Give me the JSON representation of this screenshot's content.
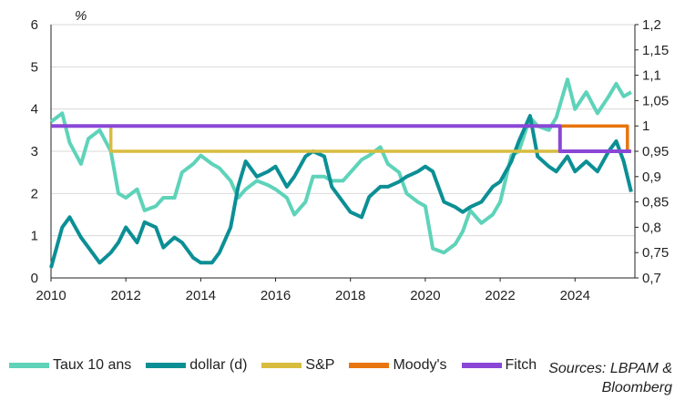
{
  "chart_data": {
    "type": "line",
    "y_unit": "%",
    "x_ticks": [
      "2010",
      "2012",
      "2014",
      "2016",
      "2018",
      "2020",
      "2022",
      "2024"
    ],
    "xlim": [
      2010,
      2025.6
    ],
    "left_axis": {
      "ylim": [
        0,
        6
      ],
      "ticks": [
        "0",
        "1",
        "2",
        "3",
        "4",
        "5",
        "6"
      ]
    },
    "right_axis": {
      "ylim": [
        0.7,
        1.2
      ],
      "ticks": [
        "0,7",
        "0,75",
        "0,8",
        "0,85",
        "0,9",
        "0,95",
        "1",
        "1,05",
        "1,1",
        "1,15",
        "1,2"
      ]
    },
    "series": [
      {
        "name": "Taux 10 ans",
        "axis": "left",
        "color": "#5ED3B9",
        "points": [
          [
            2010.0,
            3.7
          ],
          [
            2010.3,
            3.9
          ],
          [
            2010.5,
            3.2
          ],
          [
            2010.8,
            2.7
          ],
          [
            2011.0,
            3.3
          ],
          [
            2011.3,
            3.5
          ],
          [
            2011.6,
            3.0
          ],
          [
            2011.8,
            2.0
          ],
          [
            2012.0,
            1.9
          ],
          [
            2012.3,
            2.1
          ],
          [
            2012.5,
            1.6
          ],
          [
            2012.8,
            1.7
          ],
          [
            2013.0,
            1.9
          ],
          [
            2013.3,
            1.9
          ],
          [
            2013.5,
            2.5
          ],
          [
            2013.8,
            2.7
          ],
          [
            2014.0,
            2.9
          ],
          [
            2014.3,
            2.7
          ],
          [
            2014.5,
            2.6
          ],
          [
            2014.8,
            2.3
          ],
          [
            2015.0,
            1.9
          ],
          [
            2015.2,
            2.1
          ],
          [
            2015.5,
            2.3
          ],
          [
            2015.8,
            2.2
          ],
          [
            2016.0,
            2.1
          ],
          [
            2016.3,
            1.9
          ],
          [
            2016.5,
            1.5
          ],
          [
            2016.8,
            1.8
          ],
          [
            2017.0,
            2.4
          ],
          [
            2017.3,
            2.4
          ],
          [
            2017.5,
            2.3
          ],
          [
            2017.8,
            2.3
          ],
          [
            2018.0,
            2.5
          ],
          [
            2018.3,
            2.8
          ],
          [
            2018.5,
            2.9
          ],
          [
            2018.8,
            3.1
          ],
          [
            2019.0,
            2.7
          ],
          [
            2019.3,
            2.5
          ],
          [
            2019.5,
            2.0
          ],
          [
            2019.8,
            1.8
          ],
          [
            2020.0,
            1.7
          ],
          [
            2020.2,
            0.7
          ],
          [
            2020.5,
            0.6
          ],
          [
            2020.8,
            0.8
          ],
          [
            2021.0,
            1.1
          ],
          [
            2021.2,
            1.6
          ],
          [
            2021.5,
            1.3
          ],
          [
            2021.8,
            1.5
          ],
          [
            2022.0,
            1.8
          ],
          [
            2022.3,
            2.9
          ],
          [
            2022.5,
            3.0
          ],
          [
            2022.8,
            3.8
          ],
          [
            2023.0,
            3.6
          ],
          [
            2023.3,
            3.5
          ],
          [
            2023.5,
            3.8
          ],
          [
            2023.8,
            4.7
          ],
          [
            2024.0,
            4.0
          ],
          [
            2024.3,
            4.4
          ],
          [
            2024.6,
            3.9
          ],
          [
            2024.9,
            4.3
          ],
          [
            2025.1,
            4.6
          ],
          [
            2025.3,
            4.3
          ],
          [
            2025.5,
            4.4
          ]
        ]
      },
      {
        "name": "dollar (d)",
        "axis": "right",
        "color": "#0B8F95",
        "points": [
          [
            2010.0,
            0.72
          ],
          [
            2010.3,
            0.8
          ],
          [
            2010.5,
            0.82
          ],
          [
            2010.8,
            0.78
          ],
          [
            2011.0,
            0.76
          ],
          [
            2011.3,
            0.73
          ],
          [
            2011.6,
            0.75
          ],
          [
            2011.8,
            0.77
          ],
          [
            2012.0,
            0.8
          ],
          [
            2012.3,
            0.77
          ],
          [
            2012.5,
            0.81
          ],
          [
            2012.8,
            0.8
          ],
          [
            2013.0,
            0.76
          ],
          [
            2013.3,
            0.78
          ],
          [
            2013.5,
            0.77
          ],
          [
            2013.8,
            0.74
          ],
          [
            2014.0,
            0.73
          ],
          [
            2014.3,
            0.73
          ],
          [
            2014.5,
            0.75
          ],
          [
            2014.8,
            0.8
          ],
          [
            2015.0,
            0.88
          ],
          [
            2015.2,
            0.93
          ],
          [
            2015.5,
            0.9
          ],
          [
            2015.8,
            0.91
          ],
          [
            2016.0,
            0.92
          ],
          [
            2016.3,
            0.88
          ],
          [
            2016.5,
            0.9
          ],
          [
            2016.8,
            0.94
          ],
          [
            2017.0,
            0.95
          ],
          [
            2017.3,
            0.94
          ],
          [
            2017.5,
            0.88
          ],
          [
            2017.8,
            0.85
          ],
          [
            2018.0,
            0.83
          ],
          [
            2018.3,
            0.82
          ],
          [
            2018.5,
            0.86
          ],
          [
            2018.8,
            0.88
          ],
          [
            2019.0,
            0.88
          ],
          [
            2019.3,
            0.89
          ],
          [
            2019.5,
            0.9
          ],
          [
            2019.8,
            0.91
          ],
          [
            2020.0,
            0.92
          ],
          [
            2020.2,
            0.91
          ],
          [
            2020.5,
            0.85
          ],
          [
            2020.8,
            0.84
          ],
          [
            2021.0,
            0.83
          ],
          [
            2021.2,
            0.84
          ],
          [
            2021.5,
            0.85
          ],
          [
            2021.8,
            0.88
          ],
          [
            2022.0,
            0.89
          ],
          [
            2022.3,
            0.93
          ],
          [
            2022.5,
            0.97
          ],
          [
            2022.8,
            1.02
          ],
          [
            2023.0,
            0.94
          ],
          [
            2023.3,
            0.92
          ],
          [
            2023.5,
            0.91
          ],
          [
            2023.8,
            0.94
          ],
          [
            2024.0,
            0.91
          ],
          [
            2024.3,
            0.93
          ],
          [
            2024.6,
            0.91
          ],
          [
            2024.9,
            0.95
          ],
          [
            2025.1,
            0.97
          ],
          [
            2025.3,
            0.93
          ],
          [
            2025.5,
            0.87
          ]
        ]
      },
      {
        "name": "S&P",
        "axis": "left",
        "color": "#D8BC3E",
        "points": [
          [
            2010.0,
            3.6
          ],
          [
            2011.6,
            3.6
          ],
          [
            2011.6,
            3.0
          ],
          [
            2025.5,
            3.0
          ]
        ]
      },
      {
        "name": "Moody's",
        "axis": "left",
        "color": "#E8740C",
        "points": [
          [
            2010.0,
            3.6
          ],
          [
            2025.4,
            3.6
          ],
          [
            2025.4,
            3.0
          ]
        ]
      },
      {
        "name": "Fitch",
        "axis": "left",
        "color": "#8A47D6",
        "points": [
          [
            2010.0,
            3.6
          ],
          [
            2023.6,
            3.6
          ],
          [
            2023.6,
            3.0
          ],
          [
            2025.5,
            3.0
          ]
        ]
      }
    ],
    "source": "Sources: LBPAM & Bloomberg",
    "source_lines": [
      "Sources: LBPAM &",
      "Bloomberg"
    ]
  }
}
